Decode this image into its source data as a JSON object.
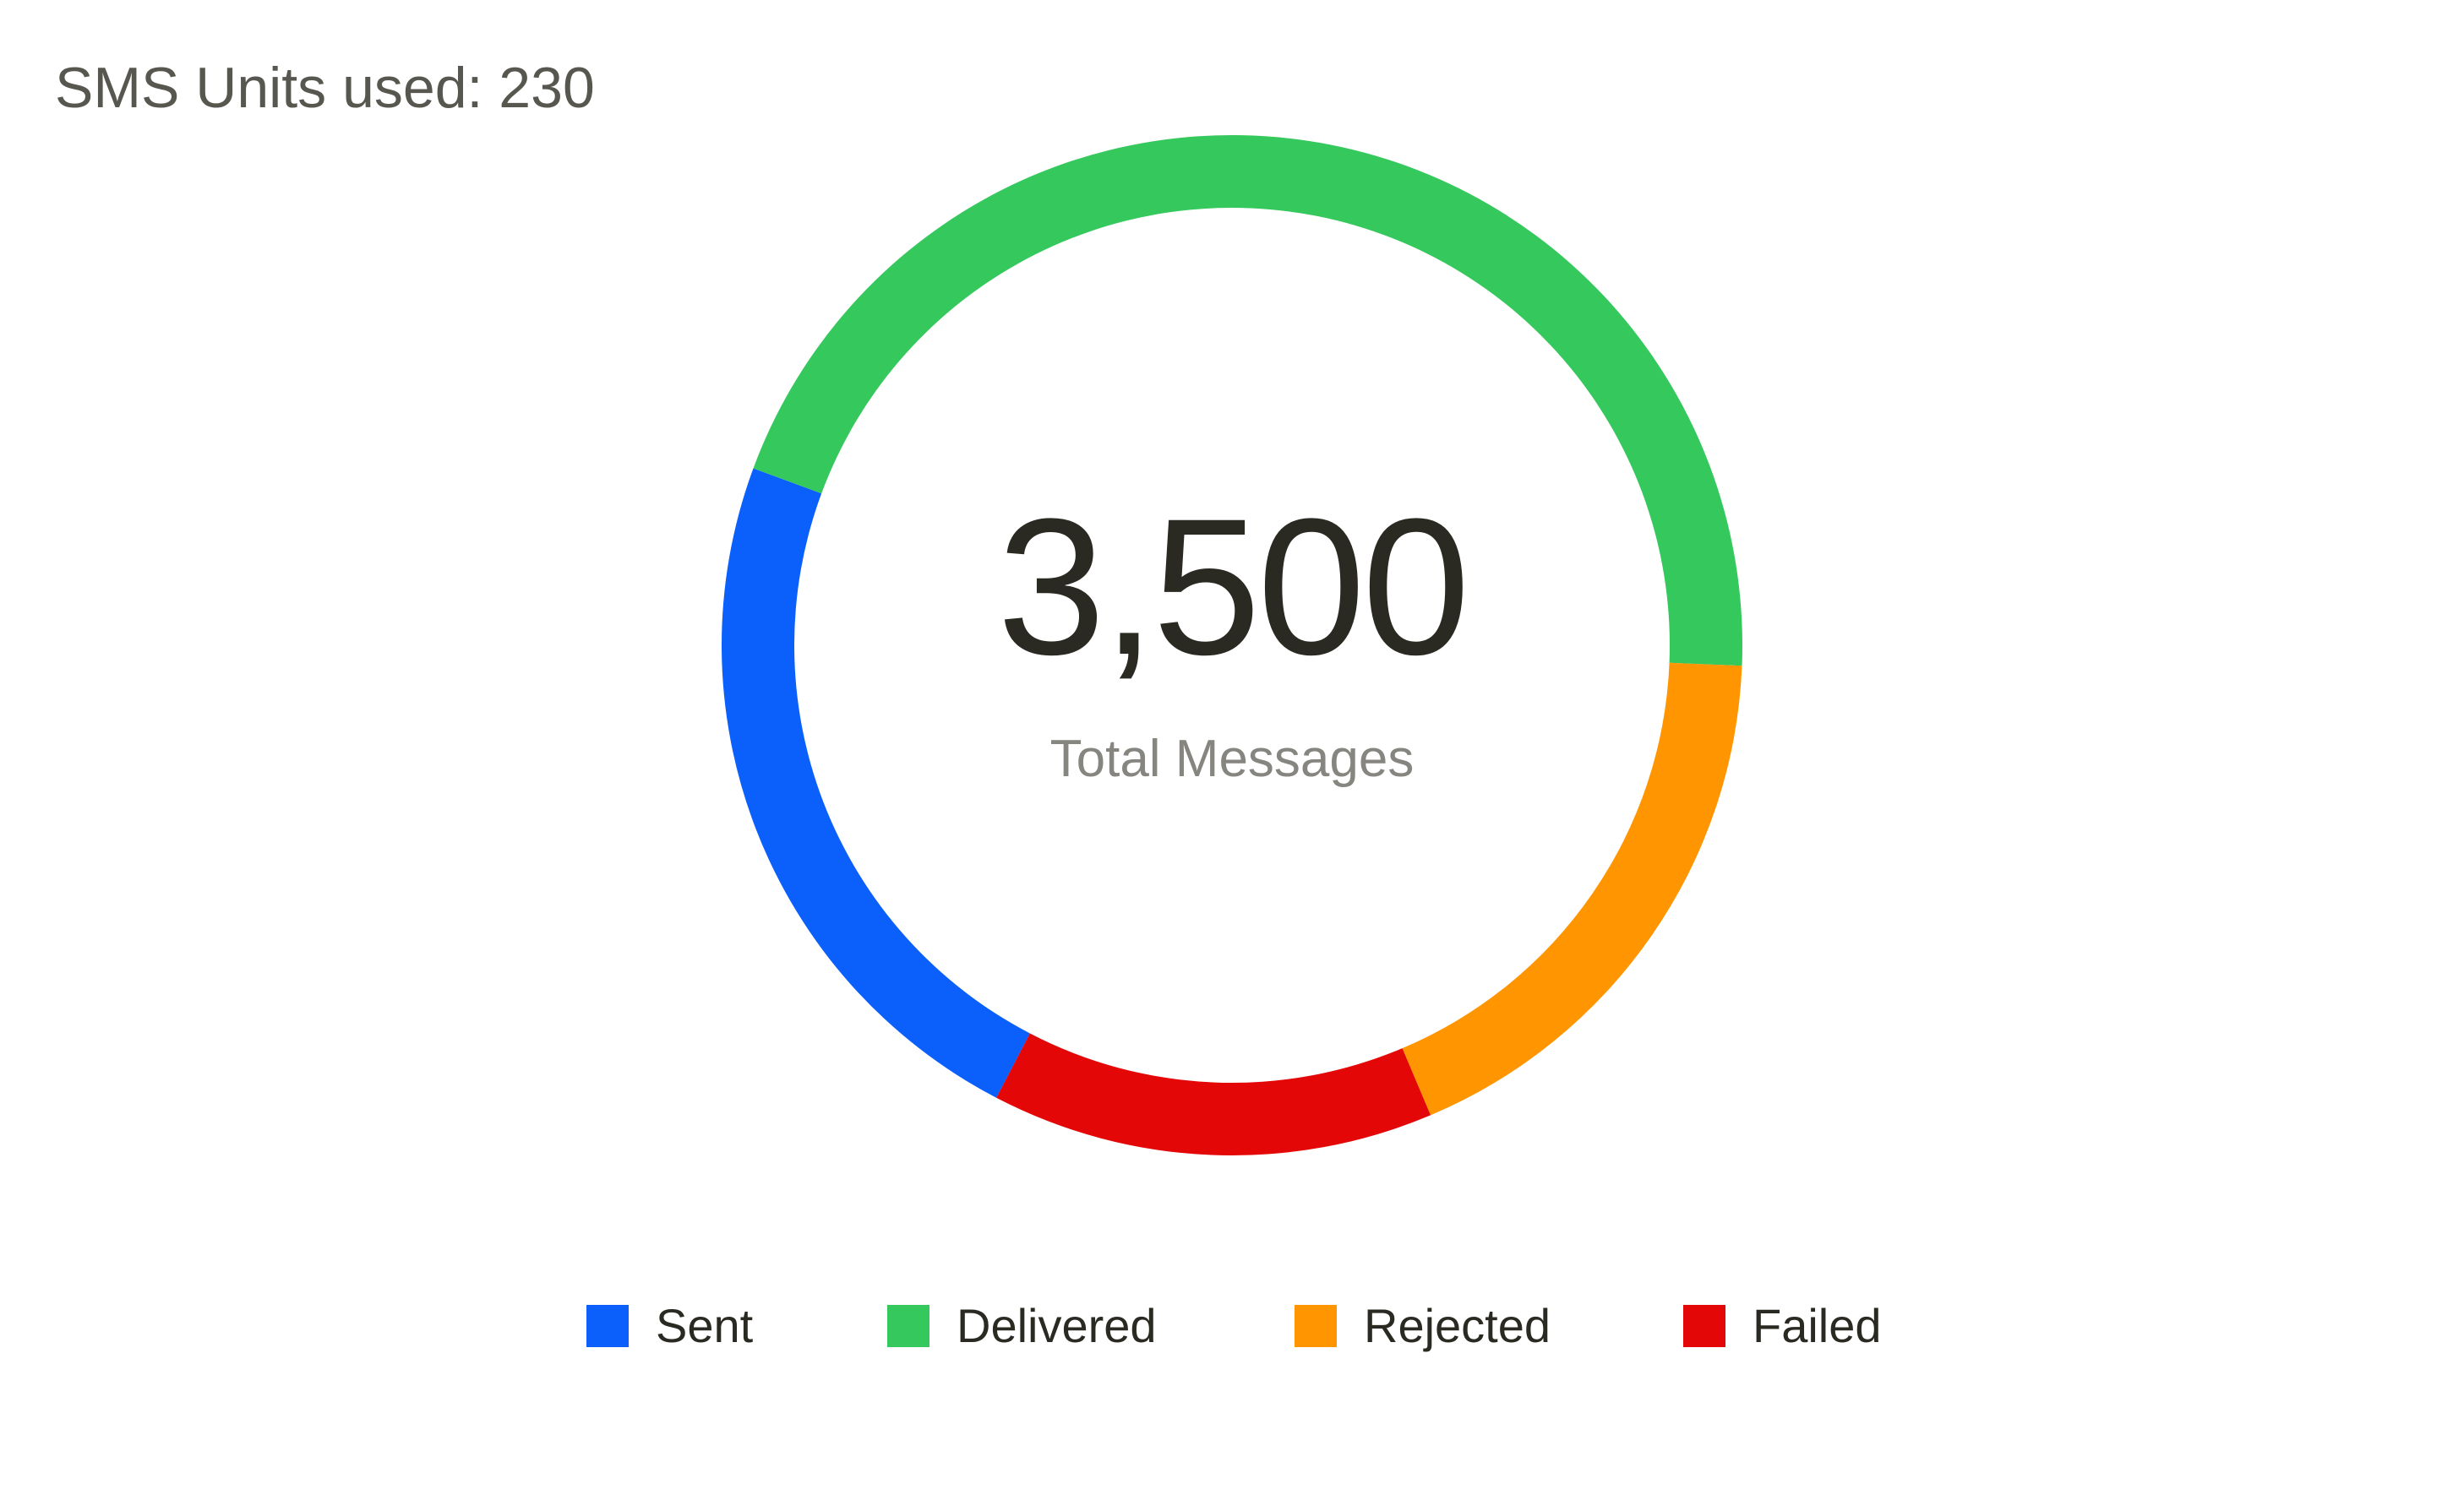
{
  "header": {
    "units_used": "SMS Units used: 230"
  },
  "center": {
    "total": "3,500",
    "label": "Total Messages"
  },
  "chart_data": {
    "type": "pie",
    "donut": true,
    "title": "",
    "total": 3500,
    "categories": [
      "Sent",
      "Delivered",
      "Rejected",
      "Failed"
    ],
    "values": [
      0.23,
      0.45,
      0.18,
      0.14
    ],
    "value_unit": "fraction of total (estimated)",
    "colors": [
      "#0b5ffb",
      "#35c85c",
      "#ff9500",
      "#e40707"
    ],
    "start": "bottom-left, clockwise",
    "legend": {
      "position": "bottom",
      "items": [
        {
          "label": "Sent",
          "color": "#0b5ffb"
        },
        {
          "label": "Delivered",
          "color": "#35c85c"
        },
        {
          "label": "Rejected",
          "color": "#ff9500"
        },
        {
          "label": "Failed",
          "color": "#e40707"
        }
      ]
    }
  }
}
